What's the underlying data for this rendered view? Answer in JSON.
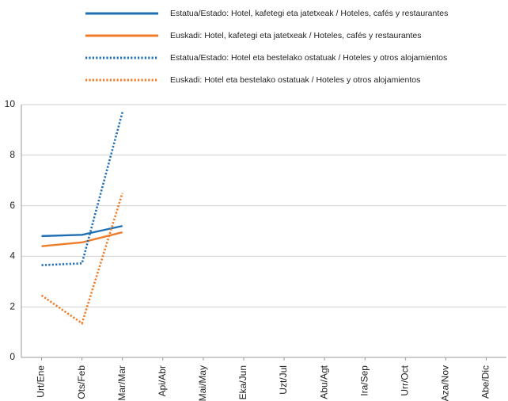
{
  "chart_data": {
    "type": "line",
    "categories": [
      "Urt/Ene",
      "Ots/Feb",
      "Mar/Mar",
      "Api/Abr",
      "Mai/May",
      "Eka/Jun",
      "Uzt/Jul",
      "Abu/Agt",
      "Ira/Sep",
      "Urr/Oct",
      "Aza/Nov",
      "Abe/Dic"
    ],
    "series": [
      {
        "name": "Estatua/Estado: Hotel, kafetegi eta jatetxeak / Hoteles, cafés y restaurantes",
        "color": "#1f6fb5",
        "style": "solid",
        "values": [
          4.8,
          4.85,
          5.2,
          null,
          null,
          null,
          null,
          null,
          null,
          null,
          null,
          null
        ]
      },
      {
        "name": "Euskadi: Hotel, kafetegi eta jatetxeak / Hoteles, cafés y restaurantes",
        "color": "#f07c2a",
        "style": "solid",
        "values": [
          4.4,
          4.55,
          4.95,
          null,
          null,
          null,
          null,
          null,
          null,
          null,
          null,
          null
        ]
      },
      {
        "name": "Estatua/Estado: Hotel eta bestelako ostatuak / Hoteles y otros alojamientos",
        "color": "#1f6fb5",
        "style": "dotted",
        "values": [
          3.65,
          3.72,
          9.7,
          null,
          null,
          null,
          null,
          null,
          null,
          null,
          null,
          null
        ]
      },
      {
        "name": "Euskadi: Hotel eta bestelako ostatuak / Hoteles y otros alojamientos",
        "color": "#f07c2a",
        "style": "dotted",
        "values": [
          2.45,
          1.35,
          6.5,
          null,
          null,
          null,
          null,
          null,
          null,
          null,
          null,
          null
        ]
      }
    ],
    "ylim": [
      0,
      10
    ],
    "yticks": [
      0,
      2,
      4,
      6,
      8,
      10
    ],
    "grid": true
  }
}
